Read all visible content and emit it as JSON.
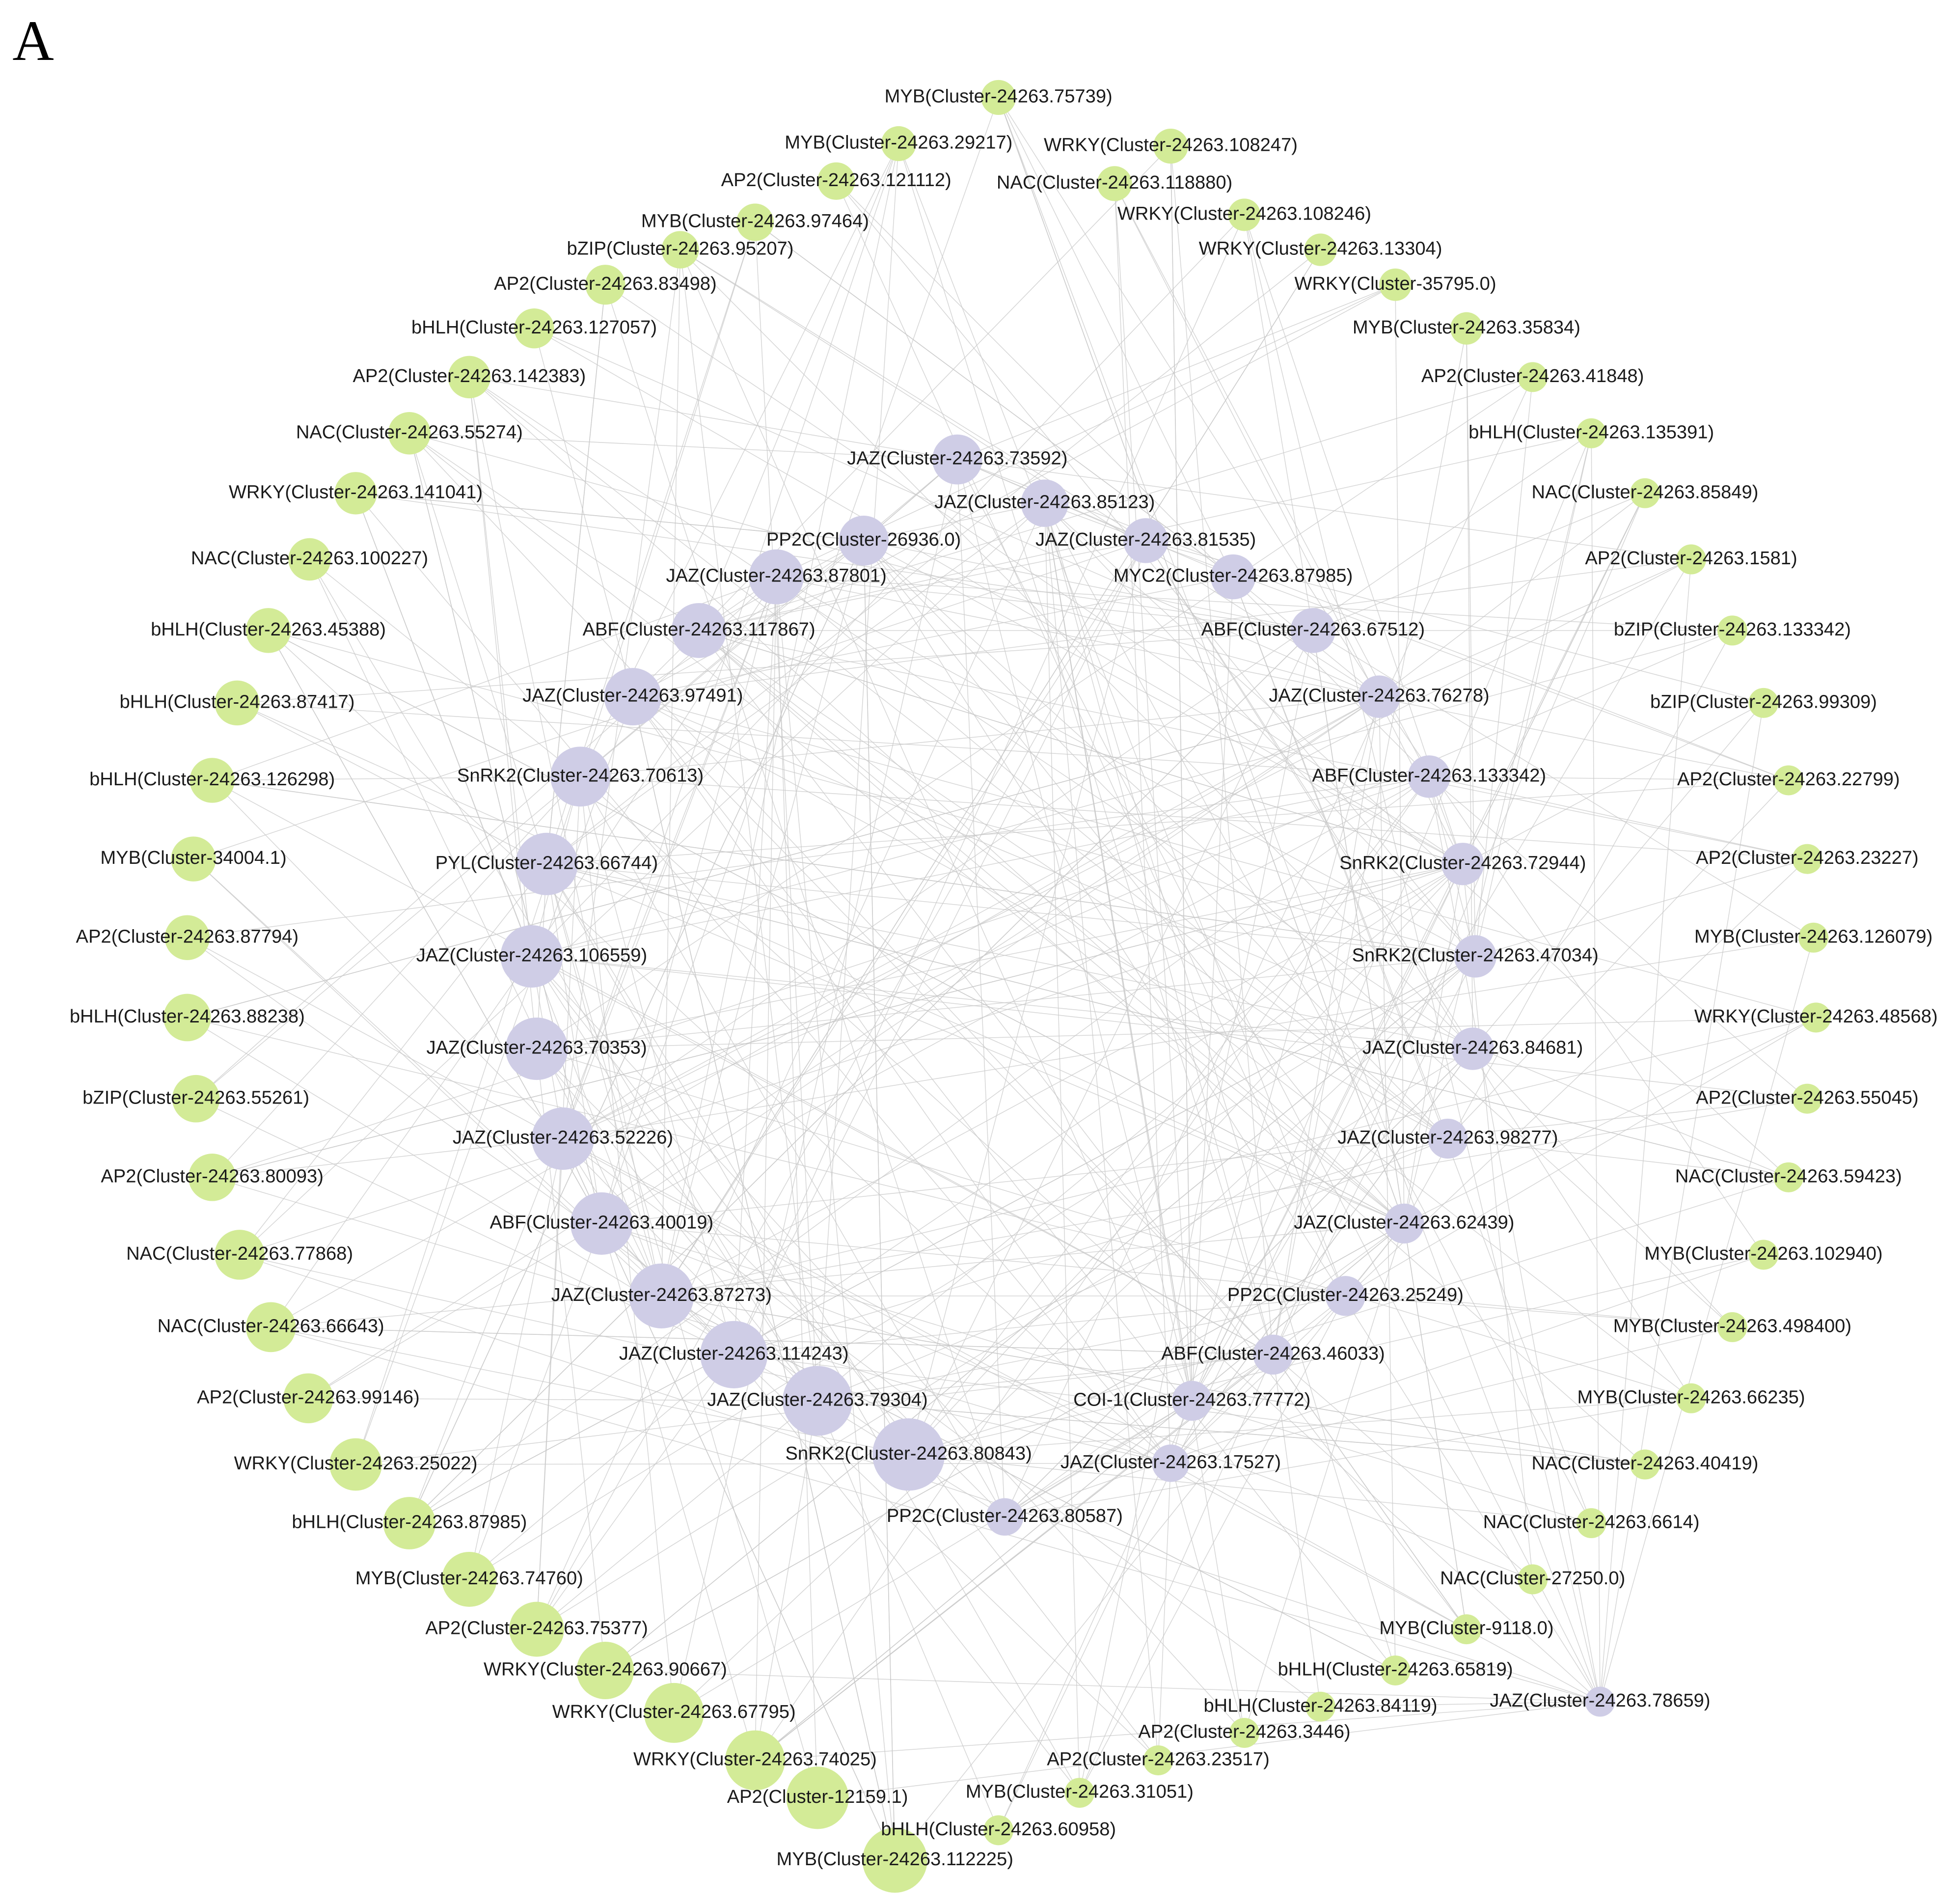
{
  "panel_label": "A",
  "nodes": [
    {
      "label": "MYB(Cluster-24263.75739)"
    },
    {
      "label": "MYB(Cluster-24263.29217)"
    },
    {
      "label": "WRKY(Cluster-24263.108247)"
    },
    {
      "label": "AP2(Cluster-24263.121112)"
    },
    {
      "label": "NAC(Cluster-24263.118880)"
    },
    {
      "label": "MYB(Cluster-24263.97464)"
    },
    {
      "label": "WRKY(Cluster-24263.108246)"
    },
    {
      "label": "bZIP(Cluster-24263.95207)"
    },
    {
      "label": "WRKY(Cluster-24263.13304)"
    },
    {
      "label": "AP2(Cluster-24263.83498)"
    },
    {
      "label": "WRKY(Cluster-35795.0)"
    },
    {
      "label": "bHLH(Cluster-24263.127057)"
    },
    {
      "label": "MYB(Cluster-24263.35834)"
    },
    {
      "label": "AP2(Cluster-24263.142383)"
    },
    {
      "label": "AP2(Cluster-24263.41848)"
    },
    {
      "label": "NAC(Cluster-24263.55274)"
    },
    {
      "label": "bHLH(Cluster-24263.135391)"
    },
    {
      "label": "WRKY(Cluster-24263.141041)"
    },
    {
      "label": "NAC(Cluster-24263.85849)"
    },
    {
      "label": "NAC(Cluster-24263.100227)"
    },
    {
      "label": "AP2(Cluster-24263.1581)"
    },
    {
      "label": "bHLH(Cluster-24263.45388)"
    },
    {
      "label": "bZIP(Cluster-24263.133342)"
    },
    {
      "label": "bHLH(Cluster-24263.87417)"
    },
    {
      "label": "bZIP(Cluster-24263.99309)"
    },
    {
      "label": "bHLH(Cluster-24263.126298)"
    },
    {
      "label": "AP2(Cluster-24263.22799)"
    },
    {
      "label": "MYB(Cluster-34004.1)"
    },
    {
      "label": "AP2(Cluster-24263.23227)"
    },
    {
      "label": "AP2(Cluster-24263.87794)"
    },
    {
      "label": "MYB(Cluster-24263.126079)"
    },
    {
      "label": "bHLH(Cluster-24263.88238)"
    },
    {
      "label": "WRKY(Cluster-24263.48568)"
    },
    {
      "label": "bZIP(Cluster-24263.55261)"
    },
    {
      "label": "AP2(Cluster-24263.55045)"
    },
    {
      "label": "AP2(Cluster-24263.80093)"
    },
    {
      "label": "NAC(Cluster-24263.59423)"
    },
    {
      "label": "NAC(Cluster-24263.77868)"
    },
    {
      "label": "MYB(Cluster-24263.102940)"
    },
    {
      "label": "NAC(Cluster-24263.66643)"
    },
    {
      "label": "MYB(Cluster-24263.498400)"
    },
    {
      "label": "AP2(Cluster-24263.99146)"
    },
    {
      "label": "MYB(Cluster-24263.66235)"
    },
    {
      "label": "WRKY(Cluster-24263.25022)"
    },
    {
      "label": "NAC(Cluster-24263.40419)"
    },
    {
      "label": "bHLH(Cluster-24263.87985)"
    },
    {
      "label": "NAC(Cluster-24263.6614)"
    },
    {
      "label": "MYB(Cluster-24263.74760)"
    },
    {
      "label": "NAC(Cluster-27250.0)"
    },
    {
      "label": "AP2(Cluster-24263.75377)"
    },
    {
      "label": "MYB(Cluster-9118.0)"
    },
    {
      "label": "WRKY(Cluster-24263.90667)"
    },
    {
      "label": "bHLH(Cluster-24263.65819)"
    },
    {
      "label": "WRKY(Cluster-24263.67795)"
    },
    {
      "label": "bHLH(Cluster-24263.84119)"
    },
    {
      "label": "WRKY(Cluster-24263.74025)"
    },
    {
      "label": "AP2(Cluster-24263.3446)"
    },
    {
      "label": "AP2(Cluster-12159.1)"
    },
    {
      "label": "AP2(Cluster-24263.23517)"
    },
    {
      "label": "MYB(Cluster-24263.31051)"
    },
    {
      "label": "bHLH(Cluster-24263.60958)"
    },
    {
      "label": "MYB(Cluster-24263.112225)"
    },
    {
      "label": "JAZ(Cluster-24263.73592)"
    },
    {
      "label": "JAZ(Cluster-24263.85123)"
    },
    {
      "label": "PP2C(Cluster-26936.0)"
    },
    {
      "label": "JAZ(Cluster-24263.81535)"
    },
    {
      "label": "JAZ(Cluster-24263.87801)"
    },
    {
      "label": "MYC2(Cluster-24263.87985)"
    },
    {
      "label": "ABF(Cluster-24263.117867)"
    },
    {
      "label": "ABF(Cluster-24263.67512)"
    },
    {
      "label": "JAZ(Cluster-24263.97491)"
    },
    {
      "label": "JAZ(Cluster-24263.76278)"
    },
    {
      "label": "SnRK2(Cluster-24263.70613)"
    },
    {
      "label": "ABF(Cluster-24263.133342)"
    },
    {
      "label": "PYL(Cluster-24263.66744)"
    },
    {
      "label": "SnRK2(Cluster-24263.72944)"
    },
    {
      "label": "JAZ(Cluster-24263.106559)"
    },
    {
      "label": "SnRK2(Cluster-24263.47034)"
    },
    {
      "label": "JAZ(Cluster-24263.70353)"
    },
    {
      "label": "JAZ(Cluster-24263.84681)"
    },
    {
      "label": "JAZ(Cluster-24263.52226)"
    },
    {
      "label": "JAZ(Cluster-24263.98277)"
    },
    {
      "label": "ABF(Cluster-24263.40019)"
    },
    {
      "label": "JAZ(Cluster-24263.62439)"
    },
    {
      "label": "JAZ(Cluster-24263.87273)"
    },
    {
      "label": "PP2C(Cluster-24263.25249)"
    },
    {
      "label": "JAZ(Cluster-24263.114243)"
    },
    {
      "label": "ABF(Cluster-24263.46033)"
    },
    {
      "label": "JAZ(Cluster-24263.79304)"
    },
    {
      "label": "COI-1(Cluster-24263.77772)"
    },
    {
      "label": "SnRK2(Cluster-24263.80843)"
    },
    {
      "label": "JAZ(Cluster-24263.17527)"
    },
    {
      "label": "PP2C(Cluster-24263.80587)"
    },
    {
      "label": "JAZ(Cluster-24263.78659)"
    }
  ]
}
